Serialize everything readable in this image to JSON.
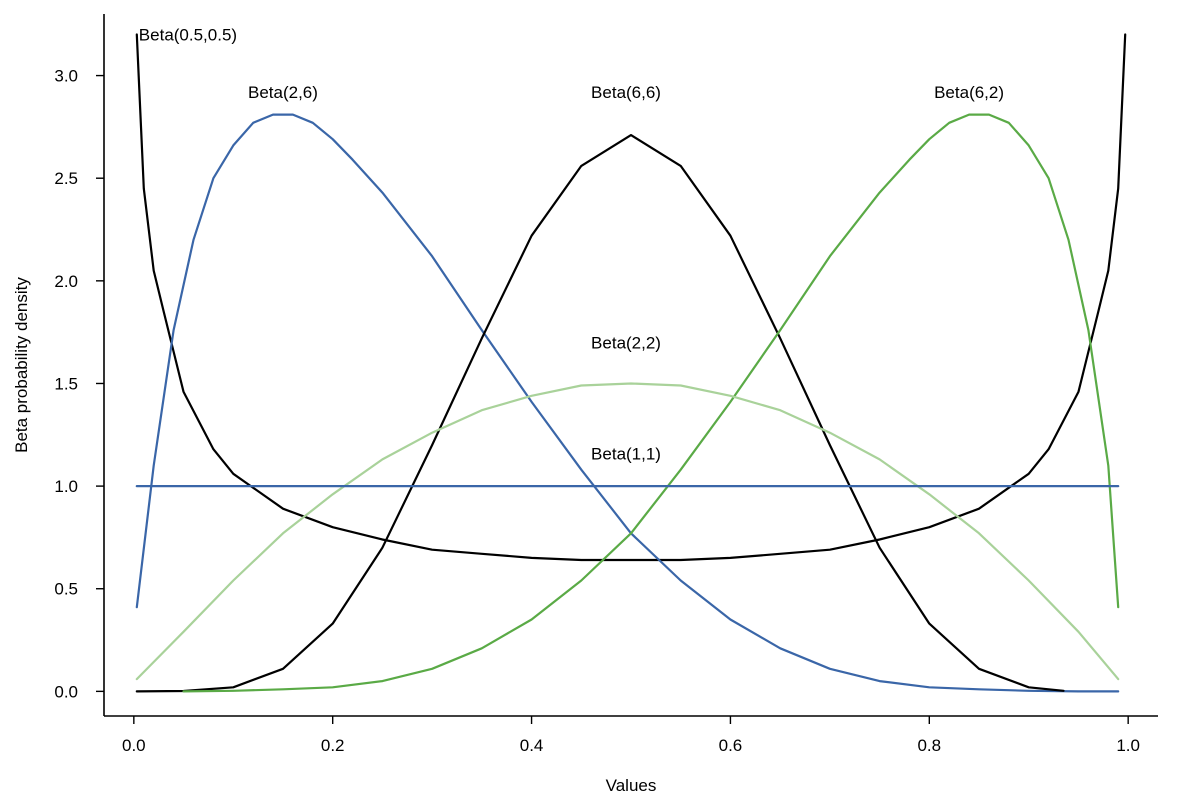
{
  "chart_data": {
    "type": "line",
    "title": "",
    "xlabel": "Values",
    "ylabel": "Beta probability density",
    "xlim": [
      -0.03,
      1.03
    ],
    "ylim": [
      -0.12,
      3.3
    ],
    "x_ticks": [
      {
        "value": 0.0,
        "label": "0.0"
      },
      {
        "value": 0.2,
        "label": "0.2"
      },
      {
        "value": 0.4,
        "label": "0.4"
      },
      {
        "value": 0.6,
        "label": "0.6"
      },
      {
        "value": 0.8,
        "label": "0.8"
      },
      {
        "value": 1.0,
        "label": "1.0"
      }
    ],
    "y_ticks": [
      {
        "value": 0.0,
        "label": "0.0"
      },
      {
        "value": 0.5,
        "label": "0.5"
      },
      {
        "value": 1.0,
        "label": "1.0"
      },
      {
        "value": 1.5,
        "label": "1.5"
      },
      {
        "value": 2.0,
        "label": "2.0"
      },
      {
        "value": 2.5,
        "label": "2.5"
      },
      {
        "value": 3.0,
        "label": "3.0"
      }
    ],
    "grid": false,
    "legend": "none",
    "series": [
      {
        "name": "Beta(0.5,0.5)",
        "color": "#000000",
        "x": [
          0.003,
          0.01,
          0.02,
          0.03,
          0.05,
          0.08,
          0.1,
          0.15,
          0.2,
          0.25,
          0.3,
          0.35,
          0.4,
          0.45,
          0.5,
          0.55,
          0.6,
          0.65,
          0.7,
          0.75,
          0.8,
          0.85,
          0.9,
          0.92,
          0.95,
          0.97,
          0.98,
          0.99,
          0.997
        ],
        "y": [
          3.2,
          2.45,
          2.05,
          1.85,
          1.46,
          1.18,
          1.06,
          0.89,
          0.8,
          0.74,
          0.69,
          0.67,
          0.65,
          0.64,
          0.64,
          0.64,
          0.65,
          0.67,
          0.69,
          0.74,
          0.8,
          0.89,
          1.06,
          1.18,
          1.46,
          1.85,
          2.05,
          2.45,
          3.2
        ]
      },
      {
        "name": "Beta(2,6)",
        "color": "#3a66a8",
        "x": [
          0.003,
          0.02,
          0.04,
          0.06,
          0.08,
          0.1,
          0.12,
          0.14,
          0.16,
          0.18,
          0.2,
          0.22,
          0.25,
          0.3,
          0.35,
          0.4,
          0.45,
          0.5,
          0.55,
          0.6,
          0.65,
          0.7,
          0.75,
          0.8,
          0.85,
          0.9,
          0.95,
          0.99
        ],
        "y": [
          0.41,
          1.1,
          1.76,
          2.2,
          2.5,
          2.66,
          2.77,
          2.81,
          2.81,
          2.77,
          2.69,
          2.59,
          2.43,
          2.12,
          1.76,
          1.41,
          1.08,
          0.77,
          0.54,
          0.35,
          0.21,
          0.11,
          0.05,
          0.02,
          0.01,
          0.003,
          0.0,
          0.0
        ]
      },
      {
        "name": "Beta(6,6)",
        "color": "#000000",
        "x": [
          0.003,
          0.05,
          0.1,
          0.15,
          0.2,
          0.25,
          0.3,
          0.35,
          0.4,
          0.45,
          0.5,
          0.55,
          0.6,
          0.65,
          0.7,
          0.75,
          0.8,
          0.85,
          0.9,
          0.935
        ],
        "y": [
          0.0,
          0.002,
          0.02,
          0.11,
          0.33,
          0.7,
          1.2,
          1.72,
          2.22,
          2.56,
          2.71,
          2.56,
          2.22,
          1.72,
          1.2,
          0.7,
          0.33,
          0.11,
          0.02,
          0.003
        ]
      },
      {
        "name": "Beta(6,2)",
        "color": "#5aaa46",
        "x": [
          0.05,
          0.1,
          0.15,
          0.2,
          0.25,
          0.3,
          0.35,
          0.4,
          0.45,
          0.5,
          0.55,
          0.6,
          0.65,
          0.7,
          0.75,
          0.78,
          0.8,
          0.82,
          0.84,
          0.86,
          0.88,
          0.9,
          0.92,
          0.94,
          0.96,
          0.98,
          0.99
        ],
        "y": [
          0.0,
          0.003,
          0.01,
          0.02,
          0.05,
          0.11,
          0.21,
          0.35,
          0.54,
          0.77,
          1.08,
          1.41,
          1.76,
          2.12,
          2.43,
          2.59,
          2.69,
          2.77,
          2.81,
          2.81,
          2.77,
          2.66,
          2.5,
          2.2,
          1.76,
          1.1,
          0.41
        ]
      },
      {
        "name": "Beta(2,2)",
        "color": "#a9d29a",
        "x": [
          0.003,
          0.05,
          0.1,
          0.15,
          0.2,
          0.25,
          0.3,
          0.35,
          0.4,
          0.45,
          0.5,
          0.55,
          0.6,
          0.65,
          0.7,
          0.75,
          0.8,
          0.85,
          0.9,
          0.95,
          0.99
        ],
        "y": [
          0.06,
          0.29,
          0.54,
          0.77,
          0.96,
          1.13,
          1.26,
          1.37,
          1.44,
          1.49,
          1.5,
          1.49,
          1.44,
          1.37,
          1.26,
          1.13,
          0.96,
          0.77,
          0.54,
          0.29,
          0.06
        ]
      },
      {
        "name": "Beta(1,1)",
        "color": "#3a66a8",
        "x": [
          0.003,
          0.99
        ],
        "y": [
          1.0,
          1.0
        ]
      }
    ],
    "annotations": [
      {
        "text": "Beta(0.5,0.5)",
        "x": 0.005,
        "y": 3.2,
        "anchor": "start"
      },
      {
        "text": "Beta(2,6)",
        "x": 0.15,
        "y": 2.92,
        "anchor": "middle"
      },
      {
        "text": "Beta(6,6)",
        "x": 0.495,
        "y": 2.92,
        "anchor": "middle"
      },
      {
        "text": "Beta(6,2)",
        "x": 0.84,
        "y": 2.92,
        "anchor": "middle"
      },
      {
        "text": "Beta(2,2)",
        "x": 0.495,
        "y": 1.7,
        "anchor": "middle"
      },
      {
        "text": "Beta(1,1)",
        "x": 0.495,
        "y": 1.16,
        "anchor": "middle"
      }
    ]
  }
}
